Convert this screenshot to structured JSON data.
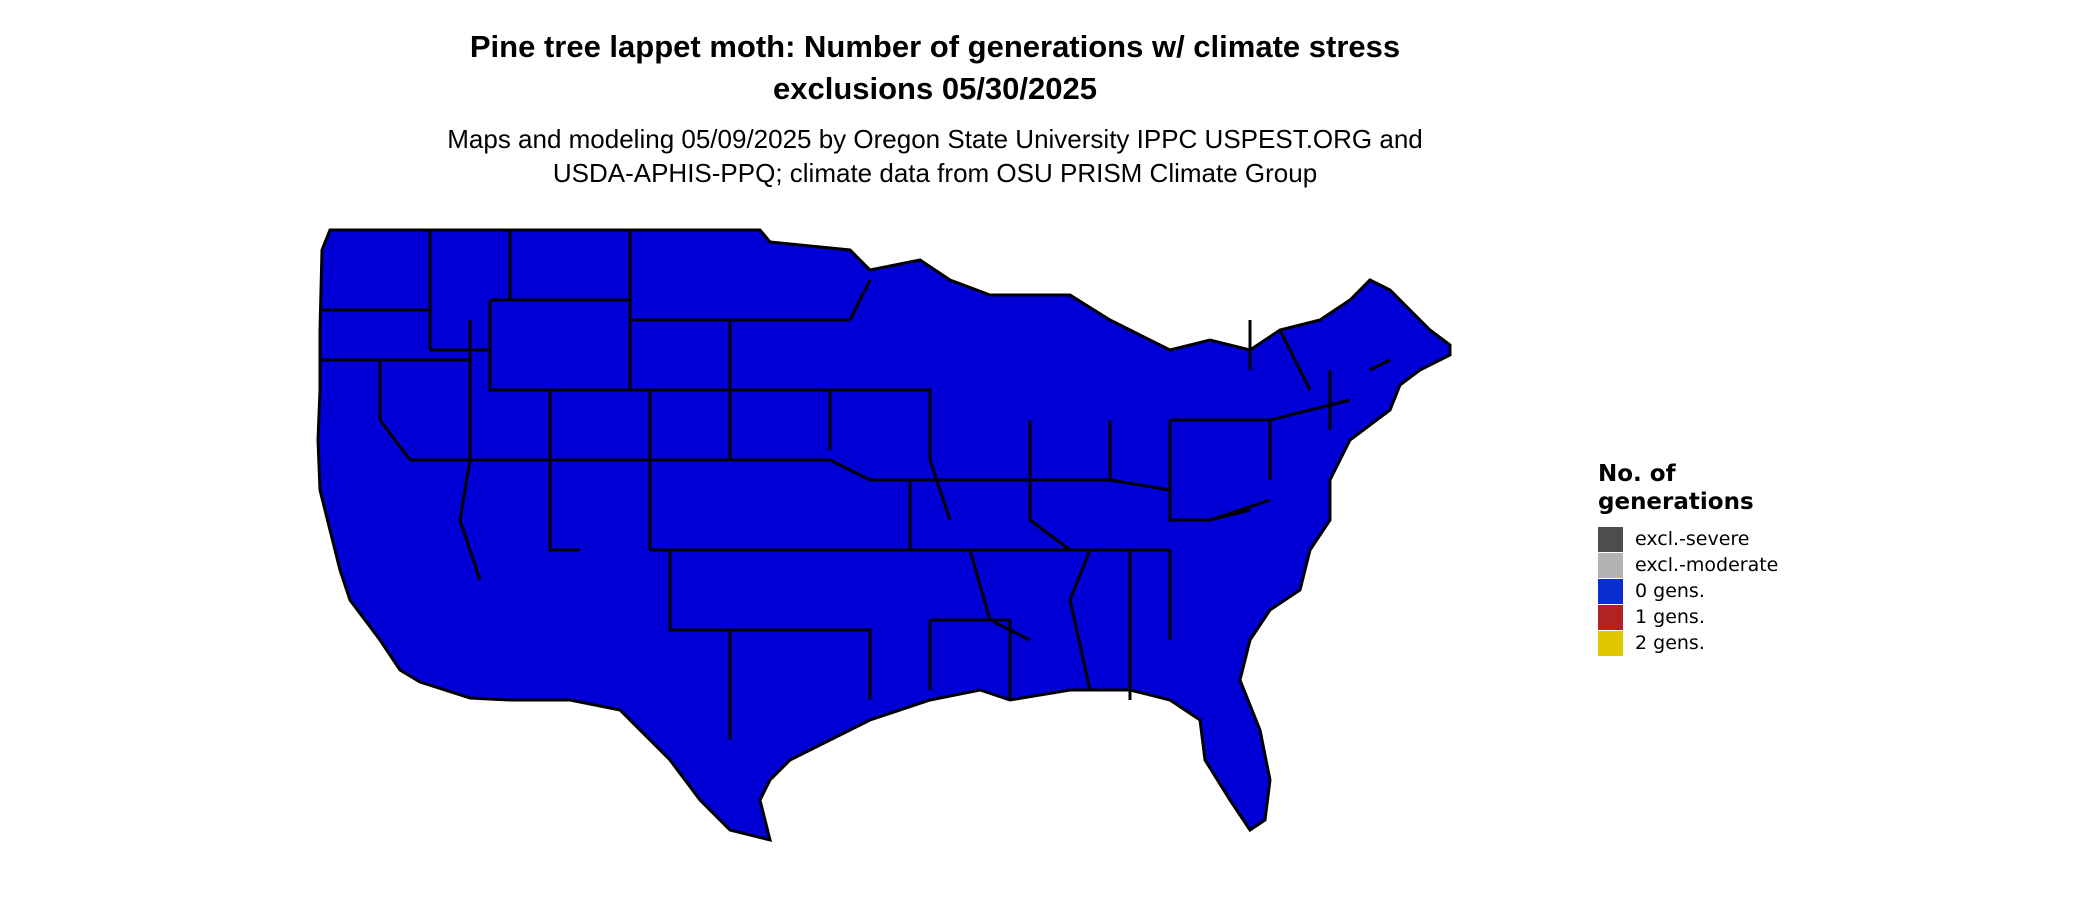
{
  "title_line1": "Pine tree lappet moth: Number of generations w/ climate stress",
  "title_line2": "exclusions 05/30/2025",
  "subtitle_line1": "Maps and modeling 05/09/2025 by Oregon State University IPPC USPEST.ORG and",
  "subtitle_line2": "USDA-APHIS-PPQ; climate data from OSU PRISM Climate Group",
  "legend": {
    "title_line1": "No. of",
    "title_line2": "generations",
    "items": [
      {
        "label": "excl.-severe",
        "color": "#4d4d4d"
      },
      {
        "label": "excl.-moderate",
        "color": "#b3b3b3"
      },
      {
        "label": "0 gens.",
        "color": "#0a2fd1"
      },
      {
        "label": "1 gens.",
        "color": "#b22222"
      },
      {
        "label": "2 gens.",
        "color": "#e0c800"
      }
    ]
  },
  "map_colors": {
    "zero_gens": "#0000d6",
    "one_gen": "#8b1a1a",
    "transition": "#ff4500",
    "excluded_moderate": "#b3b3b3",
    "excluded_severe": "#4d4d4d",
    "two_gens": "#e0c800",
    "state_border": "#000000"
  }
}
